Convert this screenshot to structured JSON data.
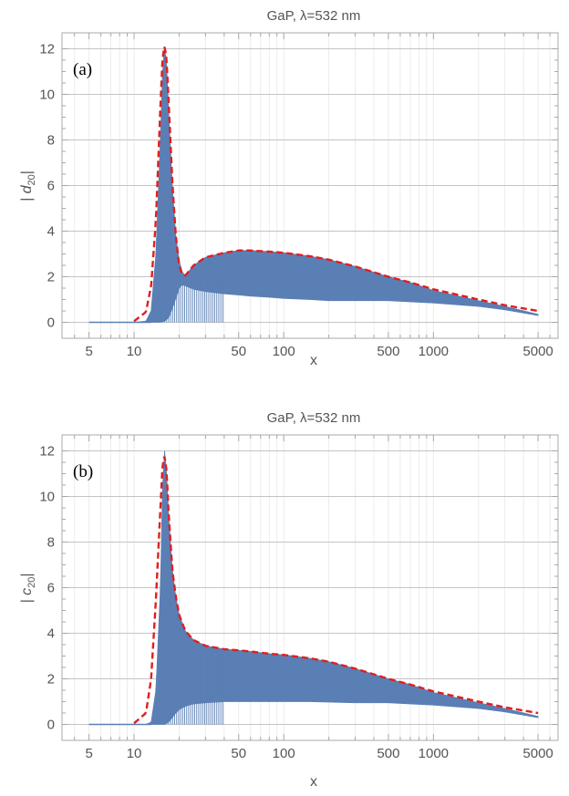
{
  "colors": {
    "oscillation": "#5a7fb4",
    "envelope": "#e01f1f",
    "axis": "#a8a8a8",
    "text": "#555555"
  },
  "chart_data": [
    {
      "type": "line",
      "title": "GaP, λ=532 nm",
      "panel_label": "(a)",
      "xlabel": "x",
      "ylabel_base": "| d",
      "ylabel_sub": "20",
      "ylabel_close": "|",
      "xscale": "log",
      "xlim": [
        3.3,
        6800
      ],
      "ylim": [
        -0.7,
        12.7
      ],
      "x_ticks": [
        5,
        10,
        50,
        100,
        500,
        1000,
        5000
      ],
      "x_tick_labels": [
        "5",
        "10",
        "50",
        "100",
        "500",
        "1000",
        "5000"
      ],
      "y_ticks": [
        0,
        2,
        4,
        6,
        8,
        10,
        12
      ],
      "y_tick_labels": [
        "0",
        "2",
        "4",
        "6",
        "8",
        "10",
        "12"
      ],
      "grid": true,
      "series": [
        {
          "role": "oscillating |d20| values (band between lower and upper)",
          "color": "#5a7fb4",
          "upper": {
            "x": [
              5,
              10,
              12,
              13,
              14,
              15,
              15.5,
              16,
              16.5,
              17,
              18,
              19,
              20,
              21,
              22,
              25,
              30,
              40,
              50,
              60,
              80,
              100,
              150,
              200,
              300,
              500,
              700,
              1000,
              2000,
              3000,
              5000
            ],
            "y": [
              0,
              0,
              0.05,
              0.5,
              3,
              8,
              11,
              12.1,
              11.3,
              9.3,
              6,
              3.8,
              2.7,
              2.2,
              2.05,
              2.5,
              2.85,
              3.05,
              3.15,
              3.15,
              3.1,
              3.05,
              2.9,
              2.75,
              2.45,
              2,
              1.75,
              1.4,
              0.95,
              0.7,
              0.35
            ]
          },
          "lower": {
            "x": [
              5,
              10,
              12,
              13,
              14,
              15,
              16,
              17,
              18,
              19,
              20,
              21,
              22,
              25,
              30,
              40,
              50,
              60,
              80,
              100,
              150,
              200,
              300,
              500,
              700,
              1000,
              2000,
              3000,
              5000
            ],
            "y": [
              0,
              0,
              0,
              0,
              0,
              0,
              0.05,
              0.2,
              0.6,
              1.05,
              1.5,
              1.65,
              1.6,
              1.45,
              1.35,
              1.25,
              1.2,
              1.15,
              1.1,
              1.05,
              1,
              0.95,
              0.95,
              0.95,
              0.9,
              0.85,
              0.7,
              0.55,
              0.3
            ]
          }
        },
        {
          "role": "envelope (dashed)",
          "color": "#e01f1f",
          "dashed": true,
          "x": [
            10,
            12,
            13,
            14,
            15,
            15.5,
            16,
            16.5,
            17,
            18,
            19,
            20,
            21,
            22,
            25,
            30,
            40,
            50,
            60,
            80,
            100,
            150,
            200,
            300,
            500,
            700,
            1000,
            2000,
            3000,
            5000
          ],
          "y": [
            0.05,
            0.45,
            1.6,
            4.5,
            9.5,
            11.6,
            12.15,
            11.5,
            9.7,
            6.2,
            3.8,
            2.5,
            2.1,
            2.05,
            2.5,
            2.85,
            3.05,
            3.15,
            3.15,
            3.1,
            3.05,
            2.9,
            2.75,
            2.45,
            2,
            1.75,
            1.45,
            1,
            0.75,
            0.5
          ]
        }
      ]
    },
    {
      "type": "line",
      "title": "GaP, λ=532 nm",
      "panel_label": "(b)",
      "xlabel": "x",
      "ylabel_base": "| c",
      "ylabel_sub": "20",
      "ylabel_close": "|",
      "xscale": "log",
      "xlim": [
        3.3,
        6800
      ],
      "ylim": [
        -0.7,
        12.7
      ],
      "x_ticks": [
        5,
        10,
        50,
        100,
        500,
        1000,
        5000
      ],
      "x_tick_labels": [
        "5",
        "10",
        "50",
        "100",
        "500",
        "1000",
        "5000"
      ],
      "y_ticks": [
        0,
        2,
        4,
        6,
        8,
        10,
        12
      ],
      "y_tick_labels": [
        "0",
        "2",
        "4",
        "6",
        "8",
        "10",
        "12"
      ],
      "grid": true,
      "series": [
        {
          "role": "oscillating |c20| values (band between lower and upper)",
          "color": "#5a7fb4",
          "upper": {
            "x": [
              5,
              10,
              12,
              13,
              14,
              15,
              15.5,
              16,
              16.5,
              17,
              18,
              19,
              20,
              22,
              25,
              30,
              40,
              50,
              60,
              80,
              100,
              150,
              200,
              300,
              500,
              700,
              1000,
              2000,
              3000,
              5000
            ],
            "y": [
              0,
              0,
              0,
              0.1,
              1.5,
              6,
              10.5,
              12,
              11,
              9.2,
              6.8,
              5.6,
              4.8,
              4.1,
              3.7,
              3.45,
              3.3,
              3.25,
              3.2,
              3.1,
              3.05,
              2.9,
              2.75,
              2.45,
              2,
              1.75,
              1.4,
              0.95,
              0.7,
              0.35
            ]
          },
          "lower": {
            "x": [
              5,
              10,
              12,
              13,
              14,
              15,
              16,
              17,
              18,
              19,
              20,
              22,
              25,
              30,
              40,
              50,
              60,
              80,
              100,
              150,
              200,
              300,
              500,
              700,
              1000,
              2000,
              3000,
              5000
            ],
            "y": [
              0,
              0,
              0,
              0,
              0,
              0,
              0,
              0.1,
              0.3,
              0.5,
              0.65,
              0.8,
              0.9,
              0.95,
              1,
              1,
              1,
              1,
              1,
              1,
              0.98,
              0.95,
              0.95,
              0.9,
              0.85,
              0.7,
              0.55,
              0.3
            ]
          }
        },
        {
          "role": "envelope (dashed)",
          "color": "#e01f1f",
          "dashed": true,
          "x": [
            10,
            12,
            13,
            14,
            15,
            15.5,
            16,
            16.5,
            17,
            18,
            19,
            20,
            22,
            25,
            30,
            40,
            50,
            60,
            80,
            100,
            150,
            200,
            300,
            500,
            700,
            1000,
            2000,
            3000,
            5000
          ],
          "y": [
            0.05,
            0.5,
            2,
            5.5,
            9.5,
            11.4,
            11.8,
            11.1,
            9.3,
            6.8,
            5.6,
            4.8,
            4.1,
            3.7,
            3.45,
            3.3,
            3.25,
            3.2,
            3.1,
            3.05,
            2.9,
            2.75,
            2.45,
            2,
            1.75,
            1.45,
            1,
            0.75,
            0.5
          ]
        }
      ]
    }
  ]
}
